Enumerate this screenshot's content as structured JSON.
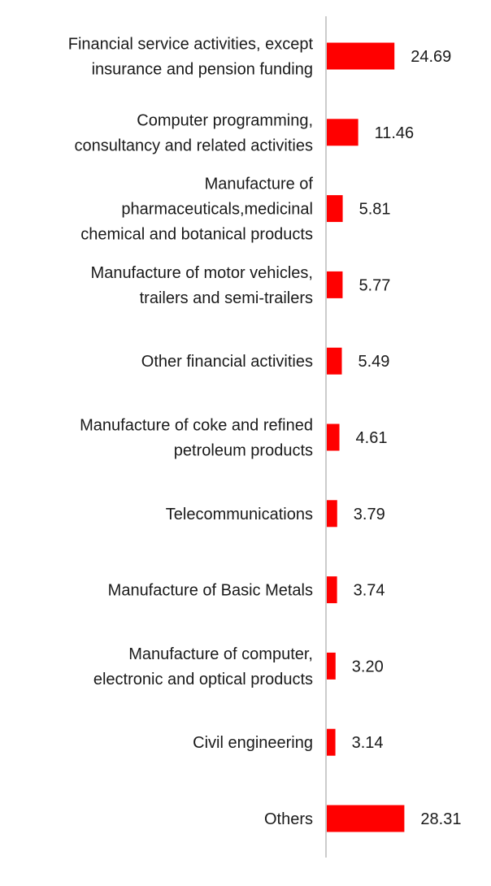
{
  "chart_data": {
    "type": "bar",
    "orientation": "horizontal",
    "title": "",
    "xlabel": "",
    "ylabel": "",
    "grid": false,
    "legend": "none",
    "bar_color": "#ff0000",
    "axis_color": "#cccccc",
    "xlim": [
      0,
      30
    ],
    "categories": [
      [
        "Financial service activities, except",
        "insurance and pension funding"
      ],
      [
        "Computer programming,",
        "consultancy and related activities"
      ],
      [
        "Manufacture of",
        "pharmaceuticals,medicinal",
        "chemical and botanical products"
      ],
      [
        "Manufacture of motor vehicles,",
        "trailers and semi-trailers"
      ],
      [
        "Other financial activities"
      ],
      [
        "Manufacture of coke and refined",
        "petroleum products"
      ],
      [
        "Telecommunications"
      ],
      [
        "Manufacture of Basic Metals"
      ],
      [
        "Manufacture of computer,",
        "electronic and optical products"
      ],
      [
        "Civil engineering"
      ],
      [
        "Others"
      ]
    ],
    "values": [
      24.69,
      11.46,
      5.81,
      5.77,
      5.49,
      4.61,
      3.79,
      3.74,
      3.2,
      3.14,
      28.31
    ],
    "value_labels": [
      "24.69",
      "11.46",
      "5.81",
      "5.77",
      "5.49",
      "4.61",
      "3.79",
      "3.74",
      "3.20",
      "3.14",
      "28.31"
    ]
  }
}
